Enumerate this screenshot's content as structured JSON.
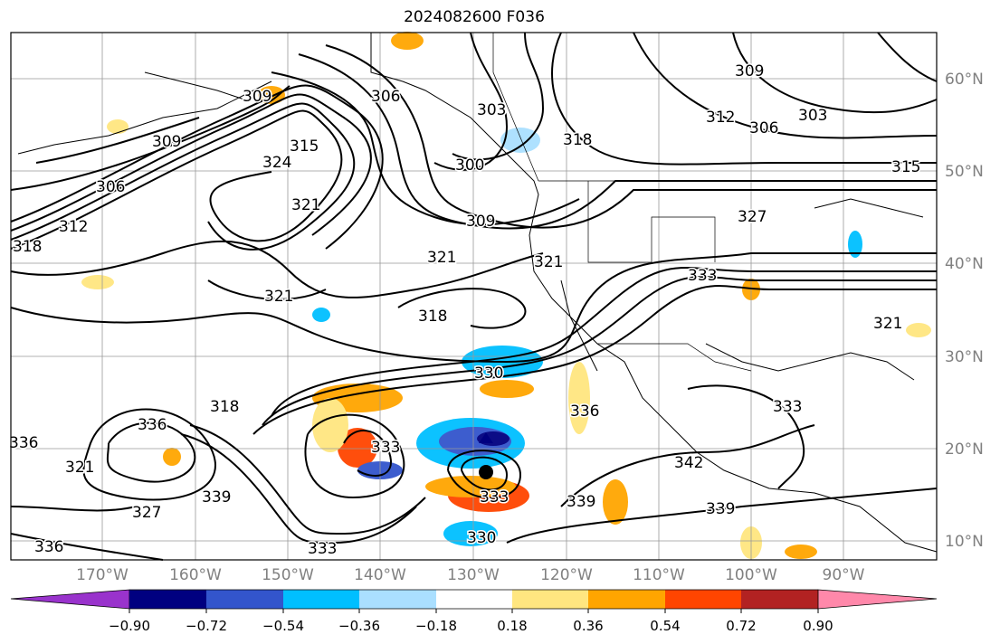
{
  "title": "2024082600 F036",
  "lat_labels": [
    "60°N",
    "50°N",
    "40°N",
    "30°N",
    "20°N",
    "10°N"
  ],
  "lon_labels": [
    "170°W",
    "160°W",
    "150°W",
    "140°W",
    "130°W",
    "120°W",
    "110°W",
    "100°W",
    "90°W"
  ],
  "colorbar": {
    "tick_labels": [
      "−0.90",
      "−0.72",
      "−0.54",
      "−0.36",
      "−0.18",
      "0.18",
      "0.36",
      "0.54",
      "0.72",
      "0.90"
    ],
    "colors": [
      "#9933cc",
      "#000080",
      "#3355cc",
      "#00bfff",
      "#aadfff",
      "#ffffff",
      "#ffe680",
      "#ffa500",
      "#ff4500",
      "#b22222",
      "#ff88aa"
    ]
  },
  "contour_labels": [
    "306",
    "309",
    "312",
    "318",
    "315",
    "324",
    "321",
    "306",
    "303",
    "309",
    "300",
    "318",
    "309",
    "321",
    "321",
    "321",
    "318",
    "330",
    "312",
    "306",
    "303",
    "309",
    "315",
    "327",
    "333",
    "321",
    "333",
    "336",
    "342",
    "339",
    "339",
    "318",
    "336",
    "339",
    "333",
    "336",
    "330",
    "333",
    "327",
    "321",
    "336",
    "333"
  ]
}
